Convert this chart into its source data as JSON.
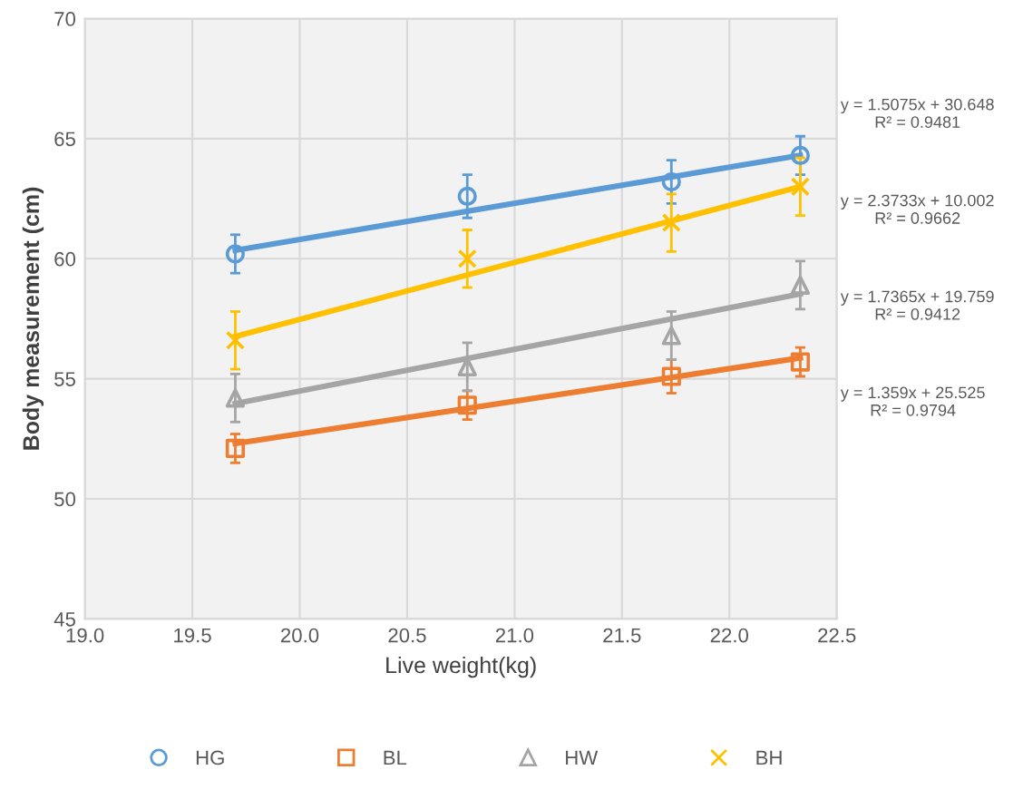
{
  "chart_data": {
    "type": "scatter",
    "xlabel": "Live weight(kg)",
    "ylabel": "Body measurement (cm)",
    "xlim": [
      19.0,
      22.5
    ],
    "ylim": [
      45,
      70
    ],
    "xticks": [
      {
        "value": 19.0,
        "label": "19.0"
      },
      {
        "value": 19.5,
        "label": "19.5"
      },
      {
        "value": 20.0,
        "label": "20.0"
      },
      {
        "value": 20.5,
        "label": "20.5"
      },
      {
        "value": 21.0,
        "label": "21.0"
      },
      {
        "value": 21.5,
        "label": "21.5"
      },
      {
        "value": 22.0,
        "label": "22.0"
      },
      {
        "value": 22.5,
        "label": "22.5"
      }
    ],
    "yticks": [
      45,
      50,
      55,
      60,
      65,
      70
    ],
    "grid": true,
    "legend": "bottom",
    "series": [
      {
        "name": "HG",
        "color": "#5b9bd5",
        "marker": "circle",
        "x": [
          19.7,
          20.78,
          21.73,
          22.33
        ],
        "values": [
          60.2,
          62.6,
          63.2,
          64.3
        ],
        "errors": [
          0.8,
          0.9,
          0.9,
          0.8
        ]
      },
      {
        "name": "BL",
        "color": "#ed7d31",
        "marker": "square",
        "x": [
          19.7,
          20.78,
          21.73,
          22.33
        ],
        "values": [
          52.1,
          53.9,
          55.1,
          55.7
        ],
        "errors": [
          0.6,
          0.6,
          0.7,
          0.6
        ]
      },
      {
        "name": "HW",
        "color": "#a5a5a5",
        "marker": "triangle",
        "x": [
          19.7,
          20.78,
          21.73,
          22.33
        ],
        "values": [
          54.2,
          55.5,
          56.8,
          58.9
        ],
        "errors": [
          1.0,
          1.0,
          1.0,
          1.0
        ]
      },
      {
        "name": "BH",
        "color": "#ffc000",
        "marker": "cross",
        "x": [
          19.7,
          20.78,
          21.73,
          22.33
        ],
        "values": [
          56.6,
          60.0,
          61.5,
          63.0
        ],
        "errors": [
          1.2,
          1.2,
          1.2,
          1.2
        ]
      },
      {
        "type": "line",
        "color": "#5b9bd5",
        "x": [
          19.7,
          22.33
        ],
        "values": [
          60.35,
          64.31
        ]
      },
      {
        "type": "line",
        "color": "#ed7d31",
        "x": [
          19.7,
          22.33
        ],
        "values": [
          52.3,
          55.87
        ]
      },
      {
        "type": "line",
        "color": "#a5a5a5",
        "x": [
          19.7,
          22.33
        ],
        "values": [
          53.97,
          58.53
        ]
      },
      {
        "type": "line",
        "color": "#ffc000",
        "x": [
          19.7,
          22.33
        ],
        "values": [
          56.76,
          63.0
        ]
      }
    ],
    "annotations": [
      "y = 1.5075x + 30.648\nR² = 0.9481",
      "y = 2.3733x + 10.002\nR² = 0.9662",
      "y = 1.7365x + 19.759\nR² = 0.9412",
      "y = 1.359x + 25.525\nR² = 0.9794"
    ]
  }
}
